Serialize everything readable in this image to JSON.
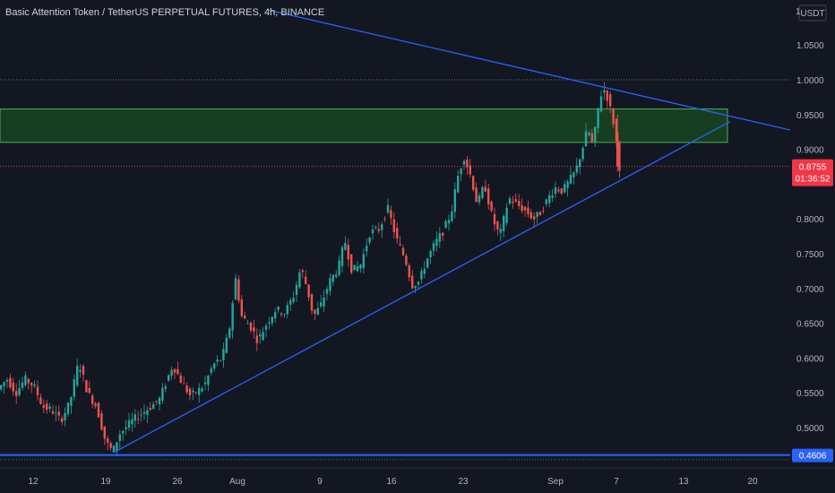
{
  "colors": {
    "background": "#131722",
    "up": "#26a69a",
    "down": "#ef5350",
    "trendline": "#2962ff",
    "zone_fill": "#1b5e20",
    "zone_border": "#4caf50",
    "price_label": "#f23645",
    "support_label": "#2962ff",
    "grid_dots": "#787b86"
  },
  "header": {
    "title": "Basic Attention Token / TetherUS PERPETUAL FUTURES, 4h, BINANCE"
  },
  "chart_data": {
    "type": "candlestick",
    "title": "Basic Attention Token / TetherUS PERPETUAL FUTURES, 4h, BINANCE",
    "currency_label": "USDT",
    "y_ticks": [
      "1.0500",
      "1.0000",
      "0.9500",
      "0.9000",
      "0.8000",
      "0.7500",
      "0.7000",
      "0.6500",
      "0.6000",
      "0.5500",
      "0.5000"
    ],
    "y_top_partial_label": "1",
    "x_ticks": [
      "12",
      "19",
      "26",
      "Aug",
      "9",
      "16",
      "23",
      "Sep",
      "7",
      "13",
      "20"
    ],
    "last_price": "0.8755",
    "countdown": "01:36:52",
    "support_price": "0.4606",
    "support_level": 0.4606,
    "resistance_dotted_level": 1.0,
    "last_price_level": 0.8755,
    "zone": {
      "low": 0.91,
      "high": 0.958
    },
    "ylim": [
      0.44,
      1.11
    ],
    "candle_anchors": [
      [
        0,
        0.555
      ],
      [
        10,
        0.57
      ],
      [
        20,
        0.55
      ],
      [
        30,
        0.57
      ],
      [
        40,
        0.56
      ],
      [
        50,
        0.53
      ],
      [
        60,
        0.525
      ],
      [
        70,
        0.51
      ],
      [
        80,
        0.535
      ],
      [
        90,
        0.595
      ],
      [
        100,
        0.55
      ],
      [
        110,
        0.53
      ],
      [
        120,
        0.48
      ],
      [
        128,
        0.465
      ],
      [
        135,
        0.49
      ],
      [
        150,
        0.51
      ],
      [
        165,
        0.525
      ],
      [
        180,
        0.54
      ],
      [
        195,
        0.59
      ],
      [
        205,
        0.565
      ],
      [
        215,
        0.545
      ],
      [
        230,
        0.56
      ],
      [
        240,
        0.59
      ],
      [
        250,
        0.6
      ],
      [
        258,
        0.64
      ],
      [
        265,
        0.715
      ],
      [
        272,
        0.66
      ],
      [
        282,
        0.645
      ],
      [
        290,
        0.625
      ],
      [
        300,
        0.65
      ],
      [
        310,
        0.67
      ],
      [
        320,
        0.665
      ],
      [
        330,
        0.69
      ],
      [
        338,
        0.73
      ],
      [
        345,
        0.7
      ],
      [
        352,
        0.66
      ],
      [
        360,
        0.675
      ],
      [
        370,
        0.71
      ],
      [
        380,
        0.73
      ],
      [
        387,
        0.77
      ],
      [
        395,
        0.725
      ],
      [
        405,
        0.735
      ],
      [
        415,
        0.78
      ],
      [
        425,
        0.785
      ],
      [
        435,
        0.815
      ],
      [
        445,
        0.77
      ],
      [
        455,
        0.74
      ],
      [
        462,
        0.705
      ],
      [
        470,
        0.71
      ],
      [
        478,
        0.74
      ],
      [
        488,
        0.765
      ],
      [
        498,
        0.785
      ],
      [
        506,
        0.81
      ],
      [
        513,
        0.86
      ],
      [
        520,
        0.89
      ],
      [
        528,
        0.86
      ],
      [
        535,
        0.82
      ],
      [
        543,
        0.85
      ],
      [
        552,
        0.8
      ],
      [
        560,
        0.775
      ],
      [
        570,
        0.83
      ],
      [
        580,
        0.82
      ],
      [
        590,
        0.81
      ],
      [
        598,
        0.8
      ],
      [
        606,
        0.81
      ],
      [
        614,
        0.83
      ],
      [
        622,
        0.845
      ],
      [
        630,
        0.84
      ],
      [
        638,
        0.855
      ],
      [
        645,
        0.87
      ],
      [
        652,
        0.9
      ],
      [
        658,
        0.93
      ],
      [
        664,
        0.905
      ],
      [
        670,
        0.96
      ],
      [
        675,
        0.99
      ],
      [
        680,
        0.975
      ],
      [
        685,
        0.95
      ],
      [
        690,
        0.92
      ],
      [
        691,
        0.875
      ]
    ],
    "trendlines": [
      {
        "from": [
          300,
          1.1
        ],
        "to": [
          932,
          0.913
        ]
      },
      {
        "from": [
          128,
          0.465
        ],
        "to": [
          815,
          0.94
        ]
      }
    ]
  }
}
